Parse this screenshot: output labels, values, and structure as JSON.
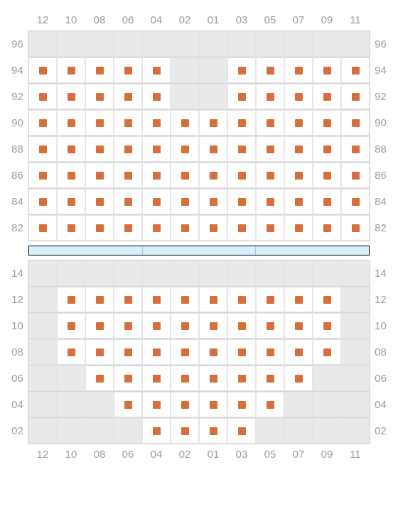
{
  "seat_color": "#d76f3c",
  "cell_available_bg": "#ffffff",
  "cell_void_bg": "#e9e9e9",
  "grid_border_color": "#d4d4d4",
  "cell_border_color": "#e5e5e5",
  "label_color": "#9e9e9e",
  "label_fontsize": 15,
  "spacer_bg": "#d5effb",
  "spacer_divider": "#8fd1ef",
  "spacer_border": "#000000",
  "columns": [
    "12",
    "10",
    "08",
    "06",
    "04",
    "02",
    "01",
    "03",
    "05",
    "07",
    "09",
    "11"
  ],
  "blocks": [
    {
      "id": "upper",
      "row_labels": [
        "96",
        "94",
        "92",
        "90",
        "88",
        "86",
        "84",
        "82"
      ],
      "cells": [
        [
          0,
          0,
          0,
          0,
          0,
          0,
          0,
          0,
          0,
          0,
          0,
          0
        ],
        [
          1,
          1,
          1,
          1,
          1,
          0,
          0,
          1,
          1,
          1,
          1,
          1
        ],
        [
          1,
          1,
          1,
          1,
          1,
          0,
          0,
          1,
          1,
          1,
          1,
          1
        ],
        [
          1,
          1,
          1,
          1,
          1,
          1,
          1,
          1,
          1,
          1,
          1,
          1
        ],
        [
          1,
          1,
          1,
          1,
          1,
          1,
          1,
          1,
          1,
          1,
          1,
          1
        ],
        [
          1,
          1,
          1,
          1,
          1,
          1,
          1,
          1,
          1,
          1,
          1,
          1
        ],
        [
          1,
          1,
          1,
          1,
          1,
          1,
          1,
          1,
          1,
          1,
          1,
          1
        ],
        [
          1,
          1,
          1,
          1,
          1,
          1,
          1,
          1,
          1,
          1,
          1,
          1
        ]
      ]
    },
    {
      "id": "lower",
      "row_labels": [
        "14",
        "12",
        "10",
        "08",
        "06",
        "04",
        "02"
      ],
      "cells": [
        [
          0,
          0,
          0,
          0,
          0,
          0,
          0,
          0,
          0,
          0,
          0,
          0
        ],
        [
          0,
          1,
          1,
          1,
          1,
          1,
          1,
          1,
          1,
          1,
          1,
          0
        ],
        [
          0,
          1,
          1,
          1,
          1,
          1,
          1,
          1,
          1,
          1,
          1,
          0
        ],
        [
          0,
          1,
          1,
          1,
          1,
          1,
          1,
          1,
          1,
          1,
          1,
          0
        ],
        [
          0,
          0,
          1,
          1,
          1,
          1,
          1,
          1,
          1,
          1,
          0,
          0
        ],
        [
          0,
          0,
          0,
          1,
          1,
          1,
          1,
          1,
          1,
          0,
          0,
          0
        ],
        [
          0,
          0,
          0,
          0,
          1,
          1,
          1,
          1,
          0,
          0,
          0,
          0
        ]
      ]
    }
  ],
  "spacer_segments": 3
}
